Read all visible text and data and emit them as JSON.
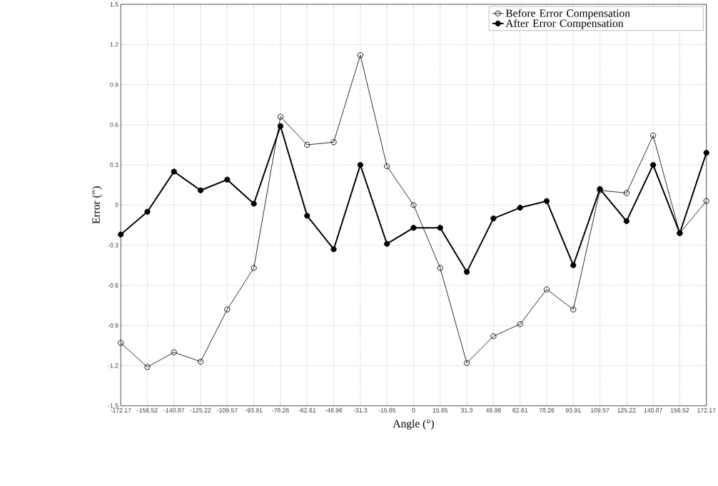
{
  "chart_data": {
    "type": "line",
    "xlabel": "Angle (°)",
    "ylabel": "Error (″)",
    "x": [
      -172.17,
      -156.52,
      -140.87,
      -125.22,
      -109.57,
      -93.91,
      -78.26,
      -62.61,
      -46.96,
      -31.3,
      -15.65,
      0,
      15.65,
      31.3,
      46.96,
      62.61,
      78.26,
      93.91,
      109.57,
      125.22,
      140.87,
      156.52,
      172.17
    ],
    "series": [
      {
        "name": "Before Error Compensation",
        "color": "#000000",
        "values": [
          -1.03,
          -1.21,
          -1.1,
          -1.17,
          -0.78,
          -0.47,
          0.66,
          0.45,
          0.47,
          1.12,
          0.29,
          0,
          -0.47,
          -1.18,
          -0.98,
          -0.89,
          -0.63,
          -0.78,
          0.11,
          0.09,
          0.52,
          -0.21,
          0.03
        ]
      },
      {
        "name": "After Error Compensation",
        "color": "#000000",
        "values": [
          -0.22,
          -0.05,
          0.25,
          0.11,
          0.19,
          0.01,
          0.59,
          -0.08,
          -0.33,
          0.3,
          -0.29,
          -0.17,
          -0.17,
          -0.5,
          -0.1,
          -0.02,
          0.03,
          -0.45,
          0.12,
          -0.12,
          0.3,
          -0.21,
          0.39
        ]
      }
    ],
    "xlim": [
      -172.17,
      172.17
    ],
    "xticks": [
      -172.17,
      -156.52,
      -140.87,
      -125.22,
      -109.57,
      -93.91,
      -78.26,
      -62.61,
      -46.96,
      -31.3,
      -15.65,
      0,
      15.65,
      31.3,
      46.96,
      62.61,
      78.26,
      93.91,
      109.57,
      125.22,
      140.87,
      156.52,
      172.17
    ],
    "ylim": [
      -1.5,
      1.5
    ],
    "yticks": [
      -1.5,
      -1.2,
      -0.9,
      -0.6,
      -0.3,
      0,
      0.3,
      0.6,
      0.9,
      1.2,
      1.5
    ],
    "grid": true,
    "legend": "top right",
    "marker": "circle",
    "line_style": "solid"
  }
}
